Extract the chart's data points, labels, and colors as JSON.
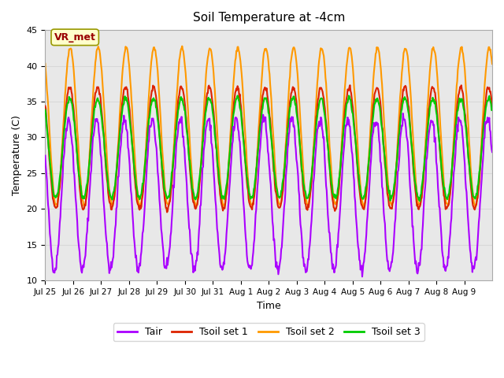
{
  "title": "Soil Temperature at -4cm",
  "xlabel": "Time",
  "ylabel": "Temperature (C)",
  "ylim": [
    10,
    45
  ],
  "n_days": 16,
  "annotation_text": "VR_met",
  "annotation_box_color": "#ffffcc",
  "annotation_text_color": "#990000",
  "line_colors": {
    "Tair": "#aa00ff",
    "Tsoil set 1": "#dd2200",
    "Tsoil set 2": "#ff9900",
    "Tsoil set 3": "#00cc00"
  },
  "line_widths": {
    "Tair": 1.5,
    "Tsoil set 1": 1.5,
    "Tsoil set 2": 1.5,
    "Tsoil set 3": 1.5
  },
  "xtick_labels": [
    "Jul 25",
    "Jul 26",
    "Jul 27",
    "Jul 28",
    "Jul 29",
    "Jul 30",
    "Jul 31",
    "Aug 1",
    "Aug 2",
    "Aug 3",
    "Aug 4",
    "Aug 5",
    "Aug 6",
    "Aug 7",
    "Aug 8",
    "Aug 9"
  ],
  "ytick_values": [
    10,
    15,
    20,
    25,
    30,
    35,
    40,
    45
  ],
  "grid_color": "#d8d8d8",
  "plot_bg_color": "#e8e8e8",
  "legend_labels": [
    "Tair",
    "Tsoil set 1",
    "Tsoil set 2",
    "Tsoil set 3"
  ]
}
